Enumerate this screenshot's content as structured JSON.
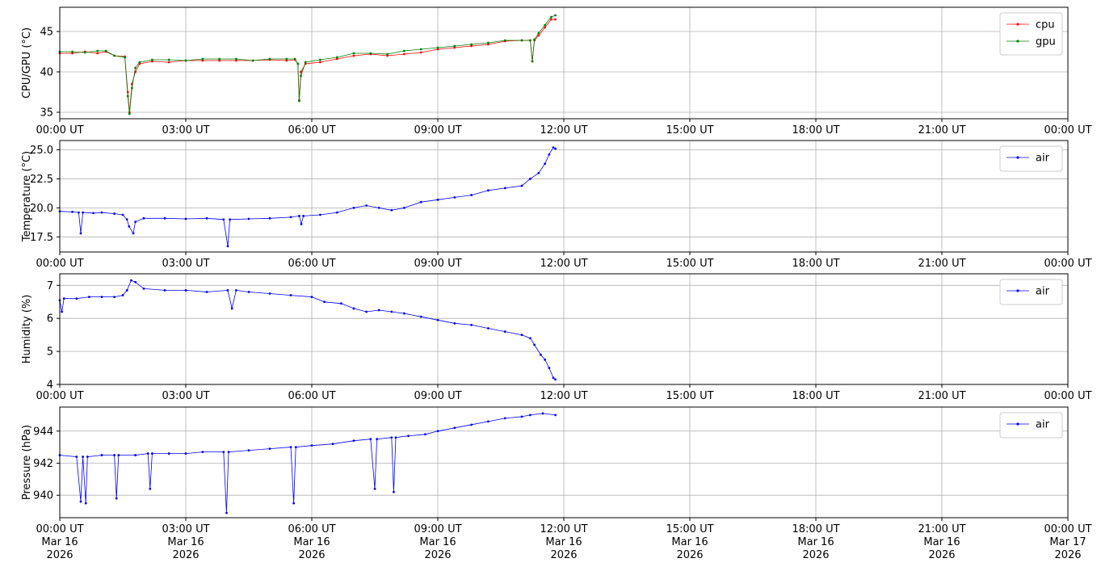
{
  "chart_data": [
    {
      "type": "line",
      "ylabel": "CPU/GPU (°C)",
      "ylim": [
        34.2,
        48.0
      ],
      "yticks": [
        35,
        40,
        45
      ],
      "xlim_hours": [
        0,
        24
      ],
      "xticks": [
        "00:00 UT",
        "03:00 UT",
        "06:00 UT",
        "09:00 UT",
        "12:00 UT",
        "15:00 UT",
        "18:00 UT",
        "21:00 UT",
        "00:00 UT"
      ],
      "grid": true,
      "legend": "top-right",
      "series": [
        {
          "name": "cpu",
          "color": "#ff0000",
          "points": [
            [
              0.0,
              42.3
            ],
            [
              0.3,
              42.3
            ],
            [
              0.6,
              42.5
            ],
            [
              0.9,
              42.3
            ],
            [
              1.1,
              42.5
            ],
            [
              1.3,
              42.0
            ],
            [
              1.55,
              41.9
            ],
            [
              1.62,
              37.5
            ],
            [
              1.66,
              35.0
            ],
            [
              1.72,
              38.5
            ],
            [
              1.8,
              40.0
            ],
            [
              1.9,
              41.0
            ],
            [
              2.2,
              41.3
            ],
            [
              2.6,
              41.2
            ],
            [
              3.0,
              41.4
            ],
            [
              3.4,
              41.4
            ],
            [
              3.8,
              41.4
            ],
            [
              4.2,
              41.4
            ],
            [
              4.6,
              41.4
            ],
            [
              5.0,
              41.5
            ],
            [
              5.4,
              41.4
            ],
            [
              5.6,
              41.5
            ],
            [
              5.67,
              41.0
            ],
            [
              5.7,
              36.5
            ],
            [
              5.74,
              40.0
            ],
            [
              5.85,
              41.0
            ],
            [
              6.2,
              41.2
            ],
            [
              6.6,
              41.6
            ],
            [
              7.0,
              42.0
            ],
            [
              7.4,
              42.2
            ],
            [
              7.8,
              42.0
            ],
            [
              8.2,
              42.2
            ],
            [
              8.6,
              42.4
            ],
            [
              9.0,
              42.8
            ],
            [
              9.4,
              43.0
            ],
            [
              9.8,
              43.2
            ],
            [
              10.2,
              43.4
            ],
            [
              10.6,
              43.8
            ],
            [
              11.0,
              43.9
            ],
            [
              11.2,
              43.9
            ],
            [
              11.25,
              41.3
            ],
            [
              11.3,
              43.9
            ],
            [
              11.4,
              44.5
            ],
            [
              11.55,
              45.5
            ],
            [
              11.7,
              46.5
            ],
            [
              11.8,
              46.5
            ]
          ]
        },
        {
          "name": "gpu",
          "color": "#008000",
          "points": [
            [
              0.0,
              42.5
            ],
            [
              0.3,
              42.5
            ],
            [
              0.6,
              42.4
            ],
            [
              0.9,
              42.6
            ],
            [
              1.1,
              42.6
            ],
            [
              1.3,
              42.0
            ],
            [
              1.55,
              41.8
            ],
            [
              1.62,
              37.0
            ],
            [
              1.66,
              34.8
            ],
            [
              1.72,
              38.0
            ],
            [
              1.8,
              40.5
            ],
            [
              1.9,
              41.2
            ],
            [
              2.2,
              41.5
            ],
            [
              2.6,
              41.5
            ],
            [
              3.0,
              41.4
            ],
            [
              3.4,
              41.6
            ],
            [
              3.8,
              41.6
            ],
            [
              4.2,
              41.6
            ],
            [
              4.6,
              41.4
            ],
            [
              5.0,
              41.6
            ],
            [
              5.4,
              41.6
            ],
            [
              5.6,
              41.6
            ],
            [
              5.67,
              41.0
            ],
            [
              5.7,
              36.4
            ],
            [
              5.74,
              39.5
            ],
            [
              5.85,
              41.2
            ],
            [
              6.2,
              41.5
            ],
            [
              6.6,
              41.8
            ],
            [
              7.0,
              42.3
            ],
            [
              7.4,
              42.3
            ],
            [
              7.8,
              42.2
            ],
            [
              8.2,
              42.6
            ],
            [
              8.6,
              42.8
            ],
            [
              9.0,
              43.0
            ],
            [
              9.4,
              43.2
            ],
            [
              9.8,
              43.4
            ],
            [
              10.2,
              43.6
            ],
            [
              10.6,
              43.9
            ],
            [
              11.0,
              43.9
            ],
            [
              11.2,
              43.9
            ],
            [
              11.25,
              41.3
            ],
            [
              11.3,
              44.0
            ],
            [
              11.4,
              44.8
            ],
            [
              11.55,
              45.8
            ],
            [
              11.7,
              46.8
            ],
            [
              11.8,
              47.0
            ]
          ]
        }
      ]
    },
    {
      "type": "line",
      "ylabel": "Temperature (°C)",
      "ylim": [
        16.2,
        25.8
      ],
      "yticks": [
        "17.5",
        "20.0",
        "22.5",
        "25.0"
      ],
      "yticks_values": [
        17.5,
        20.0,
        22.5,
        25.0
      ],
      "xlim_hours": [
        0,
        24
      ],
      "xticks": [
        "00:00 UT",
        "03:00 UT",
        "06:00 UT",
        "09:00 UT",
        "12:00 UT",
        "15:00 UT",
        "18:00 UT",
        "21:00 UT",
        "00:00 UT"
      ],
      "grid": true,
      "legend": "top-right",
      "series": [
        {
          "name": "air",
          "color": "#0000ff",
          "points": [
            [
              0.0,
              19.7
            ],
            [
              0.3,
              19.65
            ],
            [
              0.45,
              19.6
            ],
            [
              0.5,
              17.8
            ],
            [
              0.55,
              19.6
            ],
            [
              0.8,
              19.55
            ],
            [
              1.0,
              19.6
            ],
            [
              1.3,
              19.5
            ],
            [
              1.5,
              19.4
            ],
            [
              1.6,
              19.0
            ],
            [
              1.65,
              18.4
            ],
            [
              1.75,
              17.8
            ],
            [
              1.8,
              18.8
            ],
            [
              2.0,
              19.1
            ],
            [
              2.5,
              19.1
            ],
            [
              3.0,
              19.05
            ],
            [
              3.5,
              19.1
            ],
            [
              3.9,
              19.0
            ],
            [
              4.0,
              16.7
            ],
            [
              4.05,
              19.0
            ],
            [
              4.5,
              19.05
            ],
            [
              5.0,
              19.1
            ],
            [
              5.5,
              19.2
            ],
            [
              5.7,
              19.3
            ],
            [
              5.75,
              18.6
            ],
            [
              5.8,
              19.3
            ],
            [
              6.2,
              19.4
            ],
            [
              6.6,
              19.6
            ],
            [
              7.0,
              20.0
            ],
            [
              7.3,
              20.2
            ],
            [
              7.6,
              20.0
            ],
            [
              7.9,
              19.8
            ],
            [
              8.2,
              20.0
            ],
            [
              8.6,
              20.5
            ],
            [
              9.0,
              20.7
            ],
            [
              9.4,
              20.9
            ],
            [
              9.8,
              21.1
            ],
            [
              10.2,
              21.5
            ],
            [
              10.6,
              21.7
            ],
            [
              11.0,
              21.9
            ],
            [
              11.2,
              22.5
            ],
            [
              11.4,
              23.0
            ],
            [
              11.55,
              23.8
            ],
            [
              11.65,
              24.6
            ],
            [
              11.75,
              25.2
            ],
            [
              11.8,
              25.1
            ]
          ]
        }
      ]
    },
    {
      "type": "line",
      "ylabel": "Humidity (%)",
      "ylim": [
        4.0,
        7.35
      ],
      "yticks": [
        4,
        5,
        6,
        7
      ],
      "xlim_hours": [
        0,
        24
      ],
      "xticks": [
        "00:00 UT",
        "03:00 UT",
        "06:00 UT",
        "09:00 UT",
        "12:00 UT",
        "15:00 UT",
        "18:00 UT",
        "21:00 UT",
        "00:00 UT"
      ],
      "grid": true,
      "legend": "top-right",
      "series": [
        {
          "name": "air",
          "color": "#0000ff",
          "points": [
            [
              0.0,
              6.55
            ],
            [
              0.05,
              6.2
            ],
            [
              0.1,
              6.6
            ],
            [
              0.4,
              6.6
            ],
            [
              0.7,
              6.65
            ],
            [
              1.0,
              6.65
            ],
            [
              1.3,
              6.65
            ],
            [
              1.5,
              6.7
            ],
            [
              1.6,
              6.85
            ],
            [
              1.7,
              7.15
            ],
            [
              1.8,
              7.1
            ],
            [
              2.0,
              6.9
            ],
            [
              2.5,
              6.85
            ],
            [
              3.0,
              6.85
            ],
            [
              3.5,
              6.8
            ],
            [
              4.0,
              6.85
            ],
            [
              4.1,
              6.3
            ],
            [
              4.2,
              6.85
            ],
            [
              4.5,
              6.8
            ],
            [
              5.0,
              6.75
            ],
            [
              5.5,
              6.7
            ],
            [
              6.0,
              6.65
            ],
            [
              6.3,
              6.5
            ],
            [
              6.7,
              6.45
            ],
            [
              7.0,
              6.3
            ],
            [
              7.3,
              6.2
            ],
            [
              7.6,
              6.25
            ],
            [
              7.9,
              6.2
            ],
            [
              8.2,
              6.15
            ],
            [
              8.6,
              6.05
            ],
            [
              9.0,
              5.95
            ],
            [
              9.4,
              5.85
            ],
            [
              9.8,
              5.8
            ],
            [
              10.2,
              5.7
            ],
            [
              10.6,
              5.6
            ],
            [
              11.0,
              5.5
            ],
            [
              11.2,
              5.4
            ],
            [
              11.3,
              5.2
            ],
            [
              11.45,
              4.9
            ],
            [
              11.55,
              4.75
            ],
            [
              11.65,
              4.5
            ],
            [
              11.75,
              4.2
            ],
            [
              11.8,
              4.15
            ]
          ]
        }
      ]
    },
    {
      "type": "line",
      "ylabel": "Pressure (hPa)",
      "ylim": [
        938.6,
        945.5
      ],
      "yticks": [
        940,
        942,
        944
      ],
      "xlim_hours": [
        0,
        24
      ],
      "xticks": [
        "00:00 UT\nMar 16\n2026",
        "03:00 UT\nMar 16\n2026",
        "06:00 UT\nMar 16\n2026",
        "09:00 UT\nMar 16\n2026",
        "12:00 UT\nMar 16\n2026",
        "15:00 UT\nMar 16\n2026",
        "18:00 UT\nMar 16\n2026",
        "21:00 UT\nMar 16\n2026",
        "00:00 UT\nMar 17\n2026"
      ],
      "grid": true,
      "legend": "top-right",
      "series": [
        {
          "name": "air",
          "color": "#0000ff",
          "points": [
            [
              0.0,
              942.5
            ],
            [
              0.4,
              942.4
            ],
            [
              0.5,
              939.6
            ],
            [
              0.55,
              942.4
            ],
            [
              0.62,
              939.5
            ],
            [
              0.66,
              942.4
            ],
            [
              1.0,
              942.5
            ],
            [
              1.3,
              942.5
            ],
            [
              1.35,
              939.8
            ],
            [
              1.4,
              942.5
            ],
            [
              1.8,
              942.5
            ],
            [
              2.1,
              942.6
            ],
            [
              2.15,
              940.4
            ],
            [
              2.2,
              942.6
            ],
            [
              2.6,
              942.6
            ],
            [
              3.0,
              942.6
            ],
            [
              3.4,
              942.7
            ],
            [
              3.9,
              942.7
            ],
            [
              3.97,
              938.9
            ],
            [
              4.02,
              942.7
            ],
            [
              4.5,
              942.8
            ],
            [
              5.0,
              942.9
            ],
            [
              5.5,
              943.0
            ],
            [
              5.57,
              939.5
            ],
            [
              5.62,
              943.0
            ],
            [
              6.0,
              943.1
            ],
            [
              6.5,
              943.2
            ],
            [
              7.0,
              943.4
            ],
            [
              7.4,
              943.5
            ],
            [
              7.5,
              940.4
            ],
            [
              7.55,
              943.5
            ],
            [
              7.9,
              943.6
            ],
            [
              7.95,
              940.2
            ],
            [
              8.0,
              943.6
            ],
            [
              8.3,
              943.7
            ],
            [
              8.7,
              943.8
            ],
            [
              9.0,
              944.0
            ],
            [
              9.4,
              944.2
            ],
            [
              9.8,
              944.4
            ],
            [
              10.2,
              944.6
            ],
            [
              10.6,
              944.8
            ],
            [
              11.0,
              944.9
            ],
            [
              11.2,
              945.0
            ],
            [
              11.5,
              945.1
            ],
            [
              11.8,
              945.0
            ]
          ]
        }
      ]
    }
  ]
}
